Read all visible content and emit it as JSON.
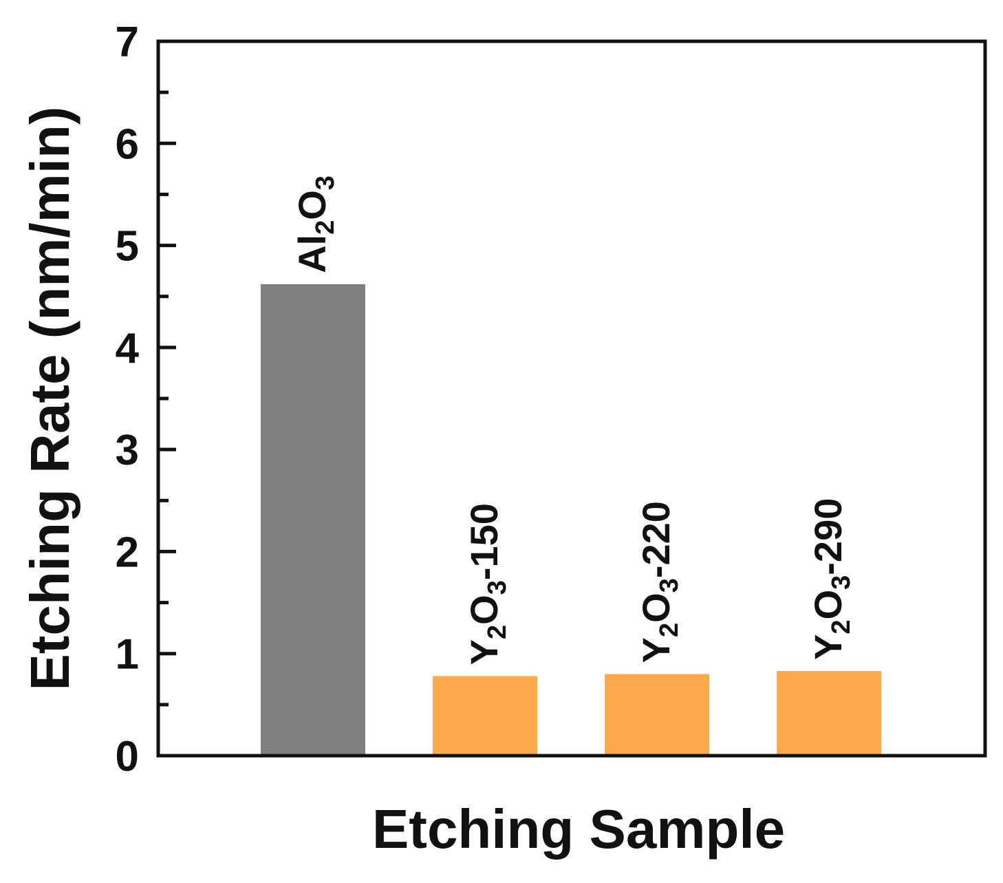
{
  "chart_data": {
    "type": "bar",
    "title": "",
    "xlabel": "Etching Sample",
    "ylabel": "Etching Rate (nm/min)",
    "ylim": [
      0,
      7
    ],
    "yticks": [
      0,
      1,
      2,
      3,
      4,
      5,
      6,
      7
    ],
    "grid": false,
    "categories": [
      {
        "label": "Al2O3",
        "label_parts": [
          {
            "text": "Al",
            "sub": false
          },
          {
            "text": "2",
            "sub": true
          },
          {
            "text": "O",
            "sub": false
          },
          {
            "text": "3",
            "sub": true
          }
        ],
        "value": 4.62,
        "color": "#808080"
      },
      {
        "label": "Y2O3-150",
        "label_parts": [
          {
            "text": "Y",
            "sub": false
          },
          {
            "text": "2",
            "sub": true
          },
          {
            "text": "O",
            "sub": false
          },
          {
            "text": "3",
            "sub": true
          },
          {
            "text": "-150",
            "sub": false
          }
        ],
        "value": 0.78,
        "color": "#FFA94D"
      },
      {
        "label": "Y2O3-220",
        "label_parts": [
          {
            "text": "Y",
            "sub": false
          },
          {
            "text": "2",
            "sub": true
          },
          {
            "text": "O",
            "sub": false
          },
          {
            "text": "3",
            "sub": true
          },
          {
            "text": "-220",
            "sub": false
          }
        ],
        "value": 0.8,
        "color": "#FFA94D"
      },
      {
        "label": "Y2O3-290",
        "label_parts": [
          {
            "text": "Y",
            "sub": false
          },
          {
            "text": "2",
            "sub": true
          },
          {
            "text": "O",
            "sub": false
          },
          {
            "text": "3",
            "sub": true
          },
          {
            "text": "-290",
            "sub": false
          }
        ],
        "value": 0.83,
        "color": "#FFA94D"
      }
    ]
  }
}
